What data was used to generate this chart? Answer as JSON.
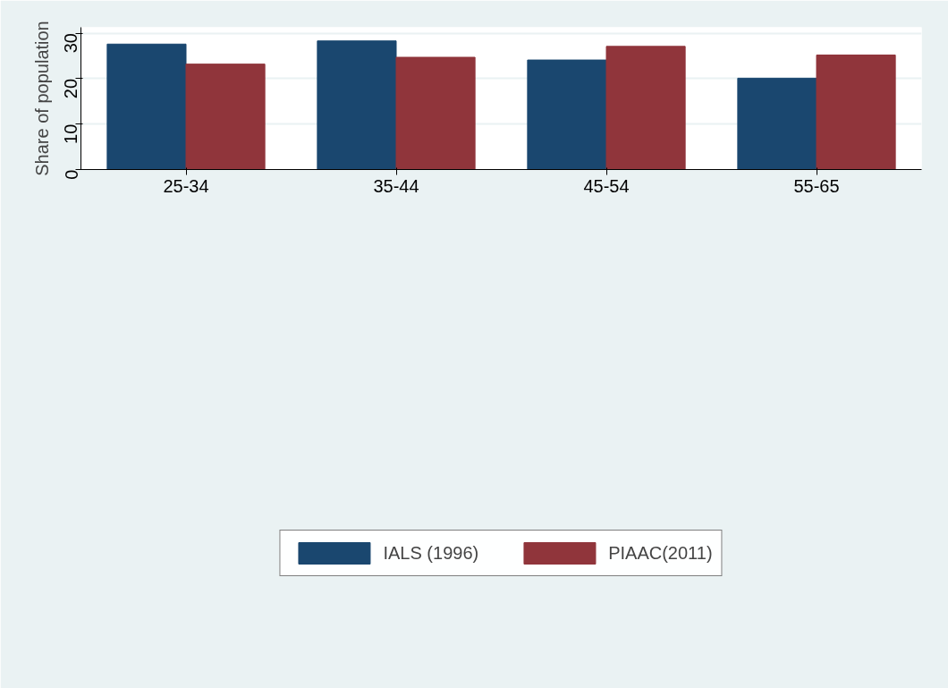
{
  "chart_data": {
    "type": "bar",
    "ylabel": "Share of population",
    "categories": [
      "25-34",
      "35-44",
      "45-54",
      "55-65"
    ],
    "series": [
      {
        "name": "IALS (1996)",
        "color": "#1a476f",
        "values": [
          27.6,
          28.3,
          24.1,
          20.1
        ]
      },
      {
        "name": "PIAAC(2011)",
        "color": "#90353b",
        "values": [
          23.2,
          24.7,
          27.1,
          25.2
        ]
      }
    ],
    "ylim": [
      0,
      31.3
    ],
    "yticks": [
      0,
      10,
      20,
      30
    ],
    "grid": "y",
    "legend": "bottom"
  }
}
